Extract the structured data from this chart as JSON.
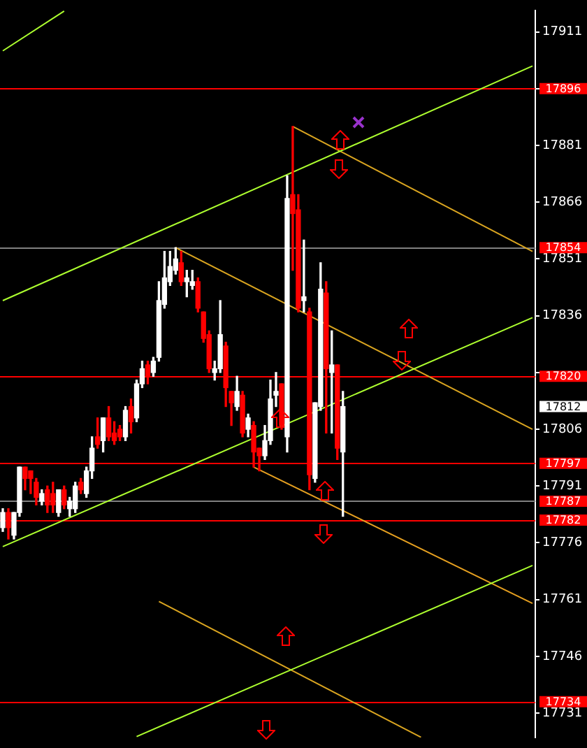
{
  "chart_data": {
    "type": "candlestick",
    "categories": [
      null,
      null,
      null,
      null,
      null,
      null,
      null,
      null,
      null,
      null,
      null,
      null,
      null,
      null,
      null,
      null,
      null,
      null,
      null,
      null,
      null,
      null,
      null,
      null,
      null,
      null,
      null,
      null,
      null,
      null,
      null,
      null,
      null,
      null,
      null,
      null,
      null,
      null,
      null,
      null,
      null,
      null,
      null,
      null,
      null,
      null,
      null,
      null,
      null,
      null,
      null,
      null,
      null,
      null,
      null,
      null,
      null,
      null,
      null,
      null,
      null,
      null,
      null,
      null,
      null,
      null,
      null,
      null,
      null,
      null,
      null,
      null,
      null,
      null,
      null,
      null,
      null,
      null,
      null,
      null,
      null,
      null,
      null,
      null,
      null,
      null,
      null,
      null,
      null,
      null,
      null,
      null,
      null,
      null,
      null,
      null
    ],
    "ohlc": [
      [
        17780,
        17785,
        17779,
        17784
      ],
      [
        17784,
        17785,
        17777,
        17780
      ],
      [
        17778,
        17784,
        17777,
        17784
      ],
      [
        17784,
        17796,
        17783,
        17796
      ],
      [
        17796,
        17796,
        17790,
        17793
      ],
      [
        17795,
        17795,
        17789,
        17793
      ],
      [
        17792,
        17793,
        17786,
        17788
      ],
      [
        17787,
        17790,
        17786,
        17789
      ],
      [
        17790,
        17791,
        17784,
        17786
      ],
      [
        17789,
        17792,
        17784,
        17786
      ],
      [
        17784,
        17790,
        17783,
        17790
      ],
      [
        17790,
        17791,
        17785,
        17786
      ],
      [
        17785,
        17788,
        17783,
        17787
      ],
      [
        17785,
        17792,
        17784,
        17791
      ],
      [
        17792,
        17793,
        17789,
        17790
      ],
      [
        17789,
        17796,
        17788,
        17795
      ],
      [
        17795,
        17804,
        17793,
        17801
      ],
      [
        17804,
        17809,
        17801,
        17802
      ],
      [
        17803,
        17809,
        17800,
        17809
      ],
      [
        17809,
        17812,
        17803,
        17804
      ],
      [
        17805,
        17808,
        17802,
        17803
      ],
      [
        17806,
        17807,
        17803,
        17804
      ],
      [
        17804,
        17812,
        17803,
        17811
      ],
      [
        17812,
        17814,
        17805,
        17808
      ],
      [
        17809,
        17819,
        17808,
        17818
      ],
      [
        17818,
        17824,
        17817,
        17822
      ],
      [
        17823,
        17824,
        17818,
        17820
      ],
      [
        17821,
        17825,
        17820,
        17824
      ],
      [
        17825,
        17845,
        17824,
        17840
      ],
      [
        17839,
        17853,
        17838,
        17846
      ],
      [
        17845,
        17853,
        17844,
        17849
      ],
      [
        17848,
        17854,
        17847,
        17851
      ],
      [
        17850,
        17853,
        17844,
        17845
      ],
      [
        17845,
        17848,
        17841,
        17846
      ],
      [
        17844,
        17848,
        17843,
        17845
      ],
      [
        17845,
        17846,
        17837,
        17838
      ],
      [
        17837,
        17837,
        17829,
        17830
      ],
      [
        17831,
        17832,
        17821,
        17822
      ],
      [
        17821,
        17824,
        17819,
        17822
      ],
      [
        17822,
        17840,
        17821,
        17831
      ],
      [
        17828,
        17829,
        17812,
        17817
      ],
      [
        17816,
        17816,
        17807,
        17813
      ],
      [
        17812,
        17820,
        17811,
        17816
      ],
      [
        17815,
        17816,
        17804,
        17805
      ],
      [
        17806,
        17810,
        17804,
        17809
      ],
      [
        17807,
        17808,
        17796,
        17800
      ],
      [
        17801,
        17801,
        17795,
        17799
      ],
      [
        17799,
        17807,
        17798,
        17803
      ],
      [
        17803,
        17819,
        17802,
        17814
      ],
      [
        17815,
        17821,
        17812,
        17816
      ],
      [
        17818,
        17818,
        17806,
        17807
      ],
      [
        17804,
        17873,
        17800,
        17867
      ],
      [
        17868,
        17886,
        17848,
        17863
      ],
      [
        17864,
        17868,
        17837,
        17838
      ],
      [
        17840,
        17856,
        17837,
        17841
      ],
      [
        17837,
        17838,
        17790,
        17794
      ],
      [
        17793,
        17813,
        17792,
        17813
      ],
      [
        17812,
        17850,
        17811,
        17843
      ],
      [
        17842,
        17845,
        17805,
        17822
      ],
      [
        17821,
        17832,
        17805,
        17823
      ],
      [
        17823,
        17823,
        17798,
        17801
      ],
      [
        17800,
        17816,
        17783,
        17812
      ],
      null,
      null,
      null,
      null,
      null,
      null,
      null,
      null,
      null,
      null,
      null,
      null,
      null,
      null,
      null,
      null,
      null,
      null,
      null,
      null,
      null,
      null,
      null,
      null,
      null,
      null,
      null,
      null,
      null,
      null,
      null,
      null,
      null,
      null
    ],
    "colors": [
      "#ffffff",
      "#ff0000",
      "#ffffff",
      "#ffffff",
      "#ff0000",
      "#ff0000",
      "#ff0000",
      "#ffffff",
      "#ff0000",
      "#ff0000",
      "#ffffff",
      "#ff0000",
      "#ffffff",
      "#ffffff",
      "#ff0000",
      "#ffffff",
      "#ffffff",
      "#ff0000",
      "#ffffff",
      "#ff0000",
      "#ff0000",
      "#ff0000",
      "#ffffff",
      "#ff0000",
      "#ffffff",
      "#ffffff",
      "#ff0000",
      "#ffffff",
      "#ffffff",
      "#ffffff",
      "#ffffff",
      "#ffffff",
      "#ff0000",
      "#ffffff",
      "#ffffff",
      "#ff0000",
      "#ff0000",
      "#ff0000",
      "#ffffff",
      "#ffffff",
      "#ff0000",
      "#ff0000",
      "#ffffff",
      "#ff0000",
      "#ffffff",
      "#ff0000",
      "#ff0000",
      "#ffffff",
      "#ffffff",
      "#ffffff",
      "#ff0000",
      "#ffffff",
      "#ff0000",
      "#ff0000",
      "#ffffff",
      "#ff0000",
      "#ffffff",
      "#ffffff",
      "#ff0000",
      "#ffffff",
      "#ff0000",
      "#ffffff",
      null,
      null,
      null,
      null,
      null,
      null,
      null,
      null,
      null,
      null,
      null,
      null,
      null,
      null,
      null,
      null,
      null,
      null,
      null,
      null,
      null,
      null,
      null,
      null,
      null,
      null,
      null,
      null,
      null,
      null,
      null,
      null,
      null,
      null
    ],
    "series": [
      {
        "type": "line",
        "color": "#adff2f",
        "values": [
          17906,
          null,
          null,
          null,
          null,
          null,
          null,
          null,
          null,
          null,
          null,
          17916.5,
          null,
          null,
          null,
          null,
          null,
          null,
          null,
          null,
          null,
          null,
          null,
          null,
          null,
          null,
          null,
          null,
          null,
          null,
          null,
          null,
          null,
          null,
          null,
          null,
          null,
          null,
          null,
          null,
          null,
          null,
          null,
          null,
          null,
          null,
          null,
          null,
          null,
          null,
          null,
          null,
          null,
          null,
          null,
          null,
          null,
          null,
          null,
          null,
          null,
          null,
          null,
          null,
          null,
          null,
          null,
          null,
          null,
          null,
          null,
          null,
          null,
          null,
          null,
          null,
          null,
          null,
          null,
          null,
          null,
          null,
          null,
          null,
          null,
          null,
          null,
          null,
          null,
          null,
          null,
          null,
          null,
          null,
          null,
          null
        ]
      },
      {
        "type": "line",
        "color": "#adff2f",
        "values": [
          17840,
          null,
          null,
          null,
          null,
          null,
          null,
          null,
          null,
          null,
          null,
          null,
          null,
          null,
          null,
          null,
          null,
          null,
          null,
          null,
          null,
          null,
          null,
          null,
          null,
          null,
          null,
          null,
          null,
          null,
          null,
          null,
          null,
          null,
          null,
          null,
          null,
          null,
          null,
          null,
          null,
          null,
          null,
          null,
          null,
          null,
          null,
          null,
          null,
          null,
          null,
          null,
          null,
          null,
          null,
          null,
          null,
          null,
          null,
          null,
          null,
          null,
          null,
          null,
          null,
          null,
          null,
          null,
          null,
          null,
          null,
          null,
          null,
          null,
          null,
          null,
          null,
          null,
          null,
          null,
          null,
          null,
          null,
          null,
          null,
          null,
          null,
          null,
          null,
          null,
          null,
          null,
          null,
          null,
          null,
          17902
        ]
      },
      {
        "type": "line",
        "color": "#adff2f",
        "values": [
          17775,
          null,
          null,
          null,
          null,
          null,
          null,
          null,
          null,
          null,
          null,
          null,
          null,
          null,
          null,
          null,
          null,
          null,
          null,
          null,
          null,
          null,
          null,
          null,
          null,
          null,
          null,
          null,
          null,
          null,
          null,
          null,
          null,
          null,
          null,
          null,
          null,
          null,
          null,
          null,
          null,
          null,
          null,
          null,
          null,
          null,
          null,
          null,
          null,
          null,
          null,
          null,
          null,
          null,
          null,
          null,
          null,
          null,
          null,
          null,
          null,
          null,
          null,
          null,
          null,
          null,
          null,
          null,
          null,
          null,
          null,
          null,
          null,
          null,
          null,
          null,
          null,
          null,
          null,
          null,
          null,
          null,
          null,
          null,
          null,
          null,
          null,
          null,
          null,
          null,
          null,
          null,
          null,
          null,
          null,
          17835.5
        ]
      },
      {
        "type": "line",
        "color": "#adff2f",
        "values": [
          null,
          null,
          null,
          null,
          null,
          null,
          null,
          null,
          null,
          null,
          null,
          null,
          null,
          null,
          null,
          null,
          null,
          null,
          null,
          null,
          null,
          null,
          null,
          null,
          17724.8,
          null,
          null,
          null,
          null,
          null,
          null,
          null,
          null,
          null,
          null,
          null,
          null,
          null,
          null,
          null,
          null,
          null,
          null,
          null,
          null,
          null,
          null,
          null,
          null,
          null,
          null,
          null,
          null,
          null,
          null,
          null,
          null,
          null,
          null,
          null,
          null,
          null,
          null,
          null,
          null,
          null,
          null,
          null,
          null,
          null,
          null,
          null,
          null,
          null,
          null,
          null,
          null,
          null,
          null,
          null,
          null,
          null,
          null,
          null,
          null,
          null,
          null,
          null,
          null,
          null,
          null,
          null,
          null,
          null,
          null,
          17770
        ]
      },
      {
        "type": "line",
        "color": "#daa520",
        "values": [
          null,
          null,
          null,
          null,
          null,
          null,
          null,
          null,
          null,
          null,
          null,
          null,
          null,
          null,
          null,
          null,
          null,
          null,
          null,
          null,
          null,
          null,
          null,
          null,
          null,
          null,
          null,
          null,
          null,
          null,
          null,
          null,
          null,
          null,
          null,
          null,
          null,
          null,
          null,
          null,
          null,
          null,
          null,
          null,
          null,
          null,
          null,
          null,
          null,
          null,
          null,
          null,
          17886,
          null,
          null,
          null,
          null,
          null,
          null,
          null,
          null,
          null,
          null,
          null,
          null,
          null,
          null,
          null,
          null,
          null,
          null,
          null,
          null,
          null,
          null,
          null,
          null,
          null,
          null,
          null,
          null,
          null,
          null,
          null,
          null,
          null,
          null,
          null,
          null,
          null,
          null,
          null,
          null,
          null,
          null,
          17853
        ]
      },
      {
        "type": "line",
        "color": "#daa520",
        "values": [
          null,
          null,
          null,
          null,
          null,
          null,
          null,
          null,
          null,
          null,
          null,
          null,
          null,
          null,
          null,
          null,
          null,
          null,
          null,
          null,
          null,
          null,
          null,
          null,
          null,
          null,
          null,
          null,
          null,
          null,
          null,
          17854,
          null,
          null,
          null,
          null,
          null,
          null,
          null,
          null,
          null,
          null,
          null,
          null,
          null,
          null,
          null,
          null,
          null,
          null,
          null,
          null,
          null,
          null,
          null,
          null,
          null,
          null,
          null,
          null,
          null,
          null,
          null,
          null,
          null,
          null,
          null,
          null,
          null,
          null,
          null,
          null,
          null,
          null,
          null,
          null,
          null,
          null,
          null,
          null,
          null,
          null,
          null,
          null,
          null,
          null,
          null,
          null,
          null,
          null,
          null,
          null,
          null,
          null,
          null,
          17806
        ]
      },
      {
        "type": "line",
        "color": "#e6a020",
        "values": [
          null,
          null,
          null,
          null,
          null,
          null,
          null,
          null,
          null,
          null,
          null,
          null,
          null,
          null,
          null,
          null,
          null,
          null,
          null,
          null,
          null,
          null,
          null,
          null,
          null,
          null,
          null,
          null,
          null,
          null,
          null,
          null,
          null,
          null,
          null,
          null,
          null,
          null,
          null,
          null,
          null,
          null,
          null,
          null,
          null,
          17796,
          null,
          null,
          null,
          null,
          null,
          null,
          null,
          null,
          null,
          null,
          null,
          null,
          null,
          null,
          null,
          null,
          null,
          null,
          null,
          null,
          null,
          null,
          null,
          null,
          null,
          null,
          null,
          null,
          null,
          null,
          null,
          null,
          null,
          null,
          null,
          null,
          null,
          null,
          null,
          null,
          null,
          null,
          null,
          null,
          null,
          null,
          null,
          null,
          null,
          17760
        ]
      },
      {
        "type": "line",
        "color": "#daa520",
        "values": [
          null,
          null,
          null,
          null,
          null,
          null,
          null,
          null,
          null,
          null,
          null,
          null,
          null,
          null,
          null,
          null,
          null,
          null,
          null,
          null,
          null,
          null,
          null,
          null,
          null,
          null,
          null,
          null,
          17760.5,
          null,
          null,
          null,
          null,
          null,
          null,
          null,
          null,
          null,
          null,
          null,
          null,
          null,
          null,
          null,
          null,
          null,
          null,
          null,
          null,
          null,
          null,
          null,
          null,
          null,
          null,
          null,
          null,
          null,
          null,
          null,
          null,
          null,
          null,
          null,
          null,
          null,
          null,
          null,
          null,
          null,
          null,
          null,
          null,
          null,
          null,
          17724.6,
          null,
          null,
          null,
          null,
          null,
          null,
          null,
          null,
          null,
          null,
          null,
          null,
          null,
          null,
          null,
          null,
          null,
          null,
          null,
          null
        ]
      }
    ],
    "ylim": [
      17724.5,
      17916.7
    ],
    "yticks": [
      17731,
      17746,
      17761,
      17776,
      17791,
      17806,
      {
        "value": 17821,
        "label": null
      },
      17836,
      17851,
      17866,
      17881,
      {
        "value": 17896,
        "label": null
      },
      17911
    ],
    "ref_lines": [
      {
        "axis": "y",
        "value": 17896,
        "label": "17896",
        "color": "#ff0000"
      },
      {
        "axis": "y",
        "value": 17854,
        "label": "17854",
        "color": "#808080"
      },
      {
        "axis": "y",
        "value": 17820,
        "label": "17820",
        "color": "#ff0000"
      },
      {
        "axis": "y",
        "value": 17797,
        "label": "17797",
        "color": "#ff0000"
      },
      {
        "axis": "y",
        "value": 17787,
        "label": "17787",
        "color": "#808080"
      },
      {
        "axis": "y",
        "value": 17782,
        "label": "17782",
        "color": "#ff0000"
      },
      {
        "axis": "y",
        "value": 17734,
        "label": "17734",
        "color": "#ff0000"
      }
    ],
    "annotations": [
      "17812"
    ],
    "tick_labels": "y",
    "grid": false,
    "legend": false
  }
}
